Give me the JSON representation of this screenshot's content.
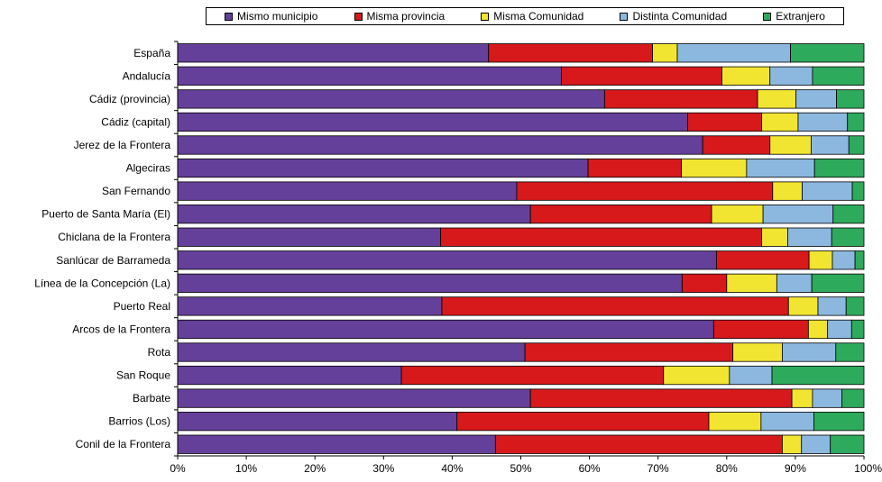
{
  "chart_data": {
    "type": "bar",
    "orientation": "horizontal",
    "stacked": true,
    "legend_position": "top",
    "categories": [
      "España",
      "Andalucía",
      "Cádiz (provincia)",
      "Cádiz (capital)",
      "Jerez de la Frontera",
      "Algeciras",
      "San Fernando",
      "Puerto de Santa María (El)",
      "Chiclana de la Frontera",
      "Sanlúcar de Barrameda",
      "Línea de la Concepción (La)",
      "Puerto Real",
      "Arcos de la Frontera",
      "Rota",
      "San Roque",
      "Barbate",
      "Barrios (Los)",
      "Conil de la Frontera"
    ],
    "series": [
      {
        "name": "Mismo municipio",
        "color": "#65409A",
        "values": [
          45.3,
          55.9,
          62.2,
          74.3,
          76.5,
          59.8,
          49.4,
          51.4,
          38.3,
          78.5,
          73.5,
          38.5,
          78.1,
          50.6,
          32.6,
          51.4,
          40.7,
          46.3
        ]
      },
      {
        "name": "Misma provincia",
        "color": "#D7191C",
        "values": [
          23.9,
          23.4,
          22.3,
          10.8,
          9.8,
          13.6,
          37.3,
          26.4,
          46.8,
          13.5,
          6.5,
          50.5,
          13.8,
          30.3,
          38.2,
          38.1,
          36.7,
          41.8
        ]
      },
      {
        "name": "Misma Comunidad",
        "color": "#F2E531",
        "values": [
          3.6,
          7.0,
          5.6,
          5.3,
          6.0,
          9.5,
          4.3,
          7.5,
          3.8,
          3.4,
          7.3,
          4.3,
          2.8,
          7.2,
          9.6,
          3.0,
          7.6,
          2.8
        ]
      },
      {
        "name": "Distinta Comunidad",
        "color": "#8CB8E0",
        "values": [
          16.5,
          6.2,
          5.9,
          7.2,
          5.5,
          9.9,
          7.3,
          10.2,
          6.4,
          3.3,
          5.1,
          4.1,
          3.5,
          7.8,
          6.2,
          4.3,
          7.7,
          4.2
        ]
      },
      {
        "name": "Extranjero",
        "color": "#2EAA5C",
        "values": [
          10.7,
          7.5,
          4.0,
          2.4,
          2.2,
          7.2,
          1.7,
          4.5,
          4.7,
          1.3,
          7.6,
          2.6,
          1.8,
          4.1,
          13.4,
          3.2,
          7.3,
          4.9
        ]
      }
    ],
    "x_ticks": [
      "0%",
      "10%",
      "20%",
      "30%",
      "40%",
      "50%",
      "60%",
      "70%",
      "80%",
      "90%",
      "100%"
    ],
    "xlim": [
      0,
      100
    ],
    "grid": false,
    "title": "",
    "xlabel": "",
    "ylabel": ""
  }
}
